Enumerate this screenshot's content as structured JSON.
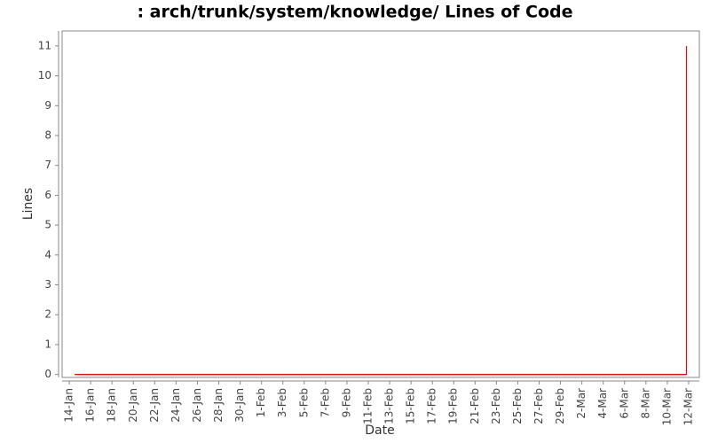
{
  "chart_data": {
    "type": "line",
    "title": ": arch/trunk/system/knowledge/ Lines of Code",
    "x_label": "Date",
    "y_label": "Lines",
    "series": [
      {
        "name": "Lines",
        "color": "#ff0000",
        "x": [
          0.5,
          57.8,
          57.8
        ],
        "values": [
          0,
          0,
          11
        ]
      }
    ],
    "xlim": [
      -0.67,
      59
    ],
    "ylim": [
      -0.1,
      11.5
    ],
    "xticks": [
      {
        "value": 0,
        "label": "14-Jan"
      },
      {
        "value": 2,
        "label": "16-Jan"
      },
      {
        "value": 4,
        "label": "18-Jan"
      },
      {
        "value": 6,
        "label": "20-Jan"
      },
      {
        "value": 8,
        "label": "22-Jan"
      },
      {
        "value": 10,
        "label": "24-Jan"
      },
      {
        "value": 12,
        "label": "26-Jan"
      },
      {
        "value": 14,
        "label": "28-Jan"
      },
      {
        "value": 16,
        "label": "30-Jan"
      },
      {
        "value": 18,
        "label": "1-Feb"
      },
      {
        "value": 20,
        "label": "3-Feb"
      },
      {
        "value": 22,
        "label": "5-Feb"
      },
      {
        "value": 24,
        "label": "7-Feb"
      },
      {
        "value": 26,
        "label": "9-Feb"
      },
      {
        "value": 28,
        "label": "11-Feb"
      },
      {
        "value": 30,
        "label": "13-Feb"
      },
      {
        "value": 32,
        "label": "15-Feb"
      },
      {
        "value": 34,
        "label": "17-Feb"
      },
      {
        "value": 36,
        "label": "19-Feb"
      },
      {
        "value": 38,
        "label": "21-Feb"
      },
      {
        "value": 40,
        "label": "23-Feb"
      },
      {
        "value": 42,
        "label": "25-Feb"
      },
      {
        "value": 44,
        "label": "27-Feb"
      },
      {
        "value": 46,
        "label": "29-Feb"
      },
      {
        "value": 48,
        "label": "2-Mar"
      },
      {
        "value": 50,
        "label": "4-Mar"
      },
      {
        "value": 52,
        "label": "6-Mar"
      },
      {
        "value": 54,
        "label": "8-Mar"
      },
      {
        "value": 56,
        "label": "10-Mar"
      },
      {
        "value": 58,
        "label": "12-Mar"
      }
    ],
    "yticks": [
      0,
      1,
      2,
      3,
      4,
      5,
      6,
      7,
      8,
      9,
      10,
      11
    ],
    "grid": false
  }
}
